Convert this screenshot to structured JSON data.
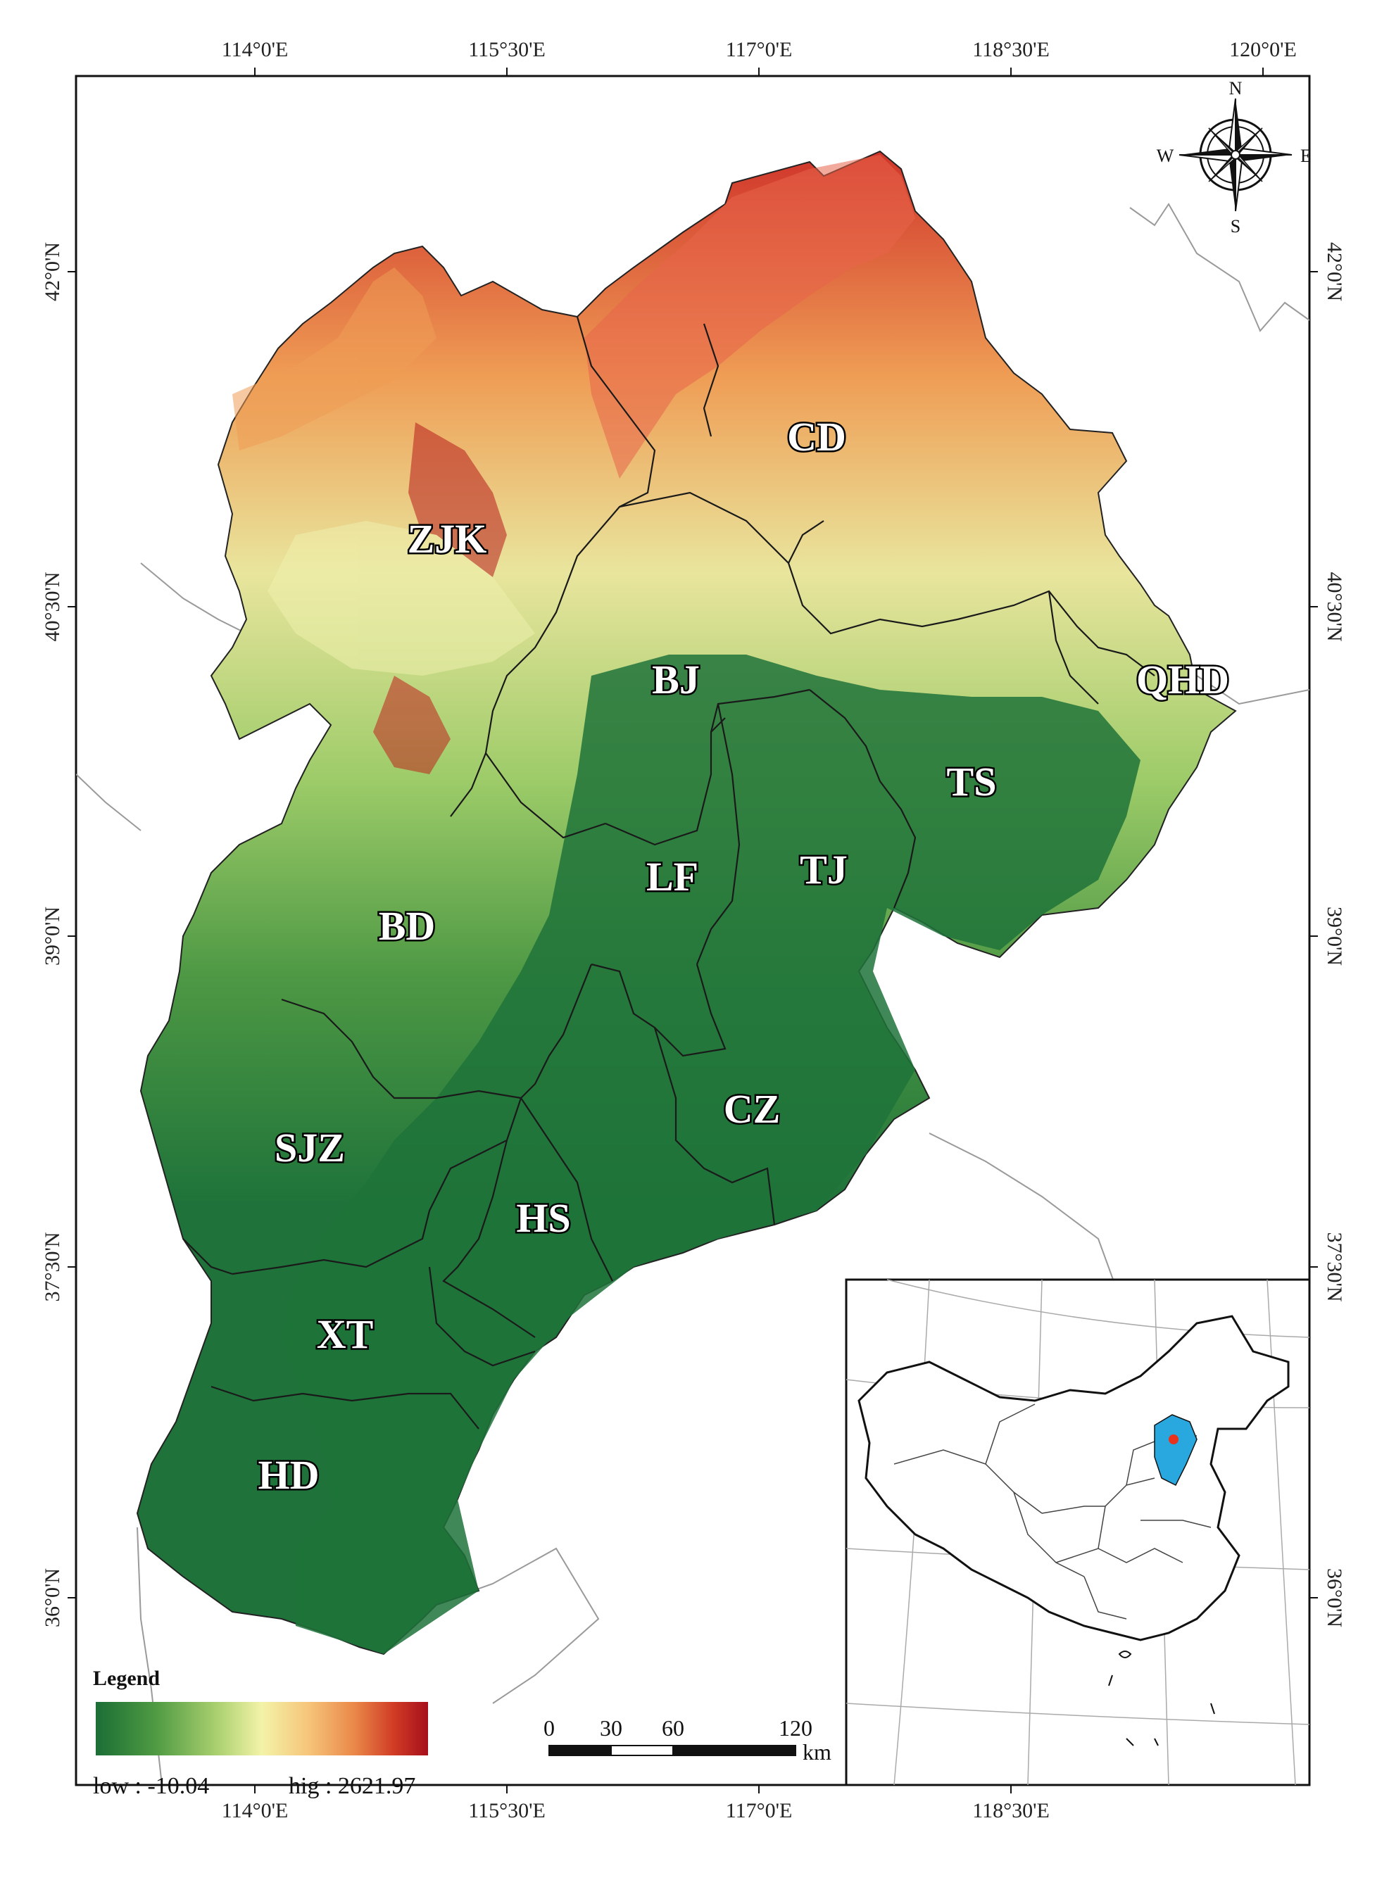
{
  "map": {
    "top_ticks": [
      "114°0'E",
      "115°30'E",
      "117°0'E",
      "118°30'E",
      "120°0'E"
    ],
    "bottom_ticks": [
      "114°0'E",
      "115°30'E",
      "117°0'E",
      "118°30'E"
    ],
    "left_ticks": [
      "42°0'N",
      "40°30'N",
      "39°0'N",
      "37°30'N",
      "36°0'N"
    ],
    "right_ticks": [
      "42°0'N",
      "40°30'N",
      "39°0'N",
      "37°30'N",
      "36°0'N"
    ],
    "regions": [
      "CD",
      "ZJK",
      "BJ",
      "QHD",
      "TS",
      "LF",
      "TJ",
      "BD",
      "CZ",
      "SJZ",
      "HS",
      "XT",
      "HD"
    ],
    "compass": {
      "n": "N",
      "s": "S",
      "e": "E",
      "w": "W"
    },
    "legend": {
      "title": "Legend",
      "low": "low : -10.04",
      "high": "hig : 2621.97",
      "colors": [
        "#1b6e35",
        "#4f9a43",
        "#a8cf6e",
        "#f3f3a8",
        "#f6c57a",
        "#ea8748",
        "#cf3a24",
        "#a70f1c"
      ]
    },
    "scale_bar": {
      "ticks": [
        "0",
        "30",
        "60",
        "120"
      ],
      "unit": "km"
    },
    "colors": {
      "lowland": "#1f733a",
      "plain": "#2f7f3d",
      "foothill": "#87bd5d",
      "upland": "#e6e59a",
      "highland": "#ef9d55",
      "peak": "#b4181e",
      "inset_highlight": "#29a8e0",
      "inset_point": "#e8321e"
    }
  }
}
